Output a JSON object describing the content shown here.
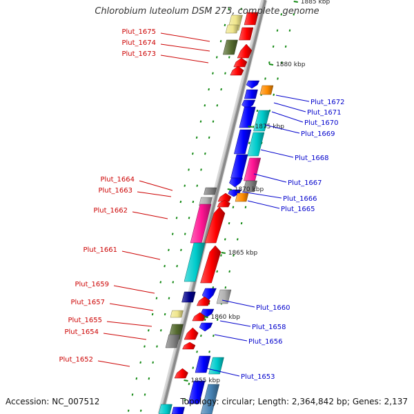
{
  "title": "Chlorobium luteolum DSM 273, complete genome",
  "footer": {
    "accession": "Accession: NC_007512",
    "summary": "Topology: circular; Length: 2,364,842 bp; Genes: 2,137"
  },
  "colors": {
    "left_label": "#cc0000",
    "right_label": "#0000cc",
    "backbone": "#8a8a8a",
    "tick": "#118811",
    "gene_palette": [
      "#ff0000",
      "#0000ff",
      "#00cccc",
      "#ff1493",
      "#808080",
      "#556b2f",
      "#ff8c00",
      "#00008b",
      "#f0e68c",
      "#b0b0b0",
      "#4682b4"
    ]
  },
  "kbp_marks": [
    "1885 kbp",
    "1880 kbp",
    "1875 kbp",
    "1870 kbp",
    "1865 kbp",
    "1860 kbp",
    "1855 kbp"
  ],
  "left_labels": [
    "Plut_1675",
    "Plut_1674",
    "Plut_1673",
    "Plut_1664",
    "Plut_1663",
    "Plut_1662",
    "Plut_1661",
    "Plut_1659",
    "Plut_1657",
    "Plut_1655",
    "Plut_1654",
    "Plut_1652"
  ],
  "right_labels": [
    "Plut_1672",
    "Plut_1671",
    "Plut_1670",
    "Plut_1669",
    "Plut_1668",
    "Plut_1667",
    "Plut_1666",
    "Plut_1665",
    "Plut_1660",
    "Plut_1658",
    "Plut_1656",
    "Plut_1653"
  ]
}
